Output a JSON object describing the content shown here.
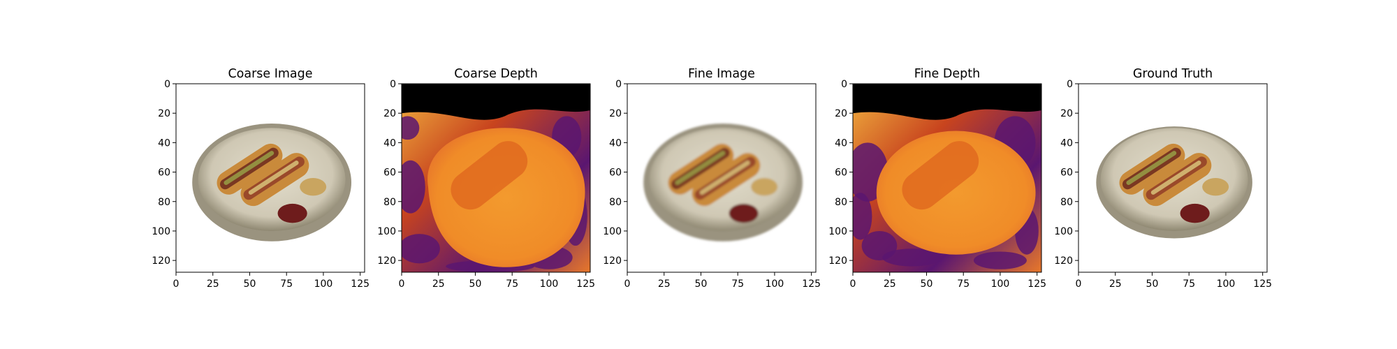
{
  "figure": {
    "panels": [
      {
        "title": "Coarse Image",
        "kind": "image"
      },
      {
        "title": "Coarse Depth",
        "kind": "depth"
      },
      {
        "title": "Fine Image",
        "kind": "image"
      },
      {
        "title": "Fine Depth",
        "kind": "depth"
      },
      {
        "title": "Ground Truth",
        "kind": "image"
      }
    ],
    "axis": {
      "x_ticks": [
        "0",
        "25",
        "50",
        "75",
        "100",
        "125"
      ],
      "y_ticks": [
        "0",
        "20",
        "40",
        "60",
        "80",
        "100",
        "120"
      ],
      "range": [
        0,
        128
      ]
    },
    "colors": {
      "depth_background": "#000000",
      "depth_near": "#f08c28",
      "depth_mid": "#e06a1e",
      "depth_noise": "#5a1670",
      "plate": "#d3cdbb",
      "plate_rim": "#9a937f",
      "bun": "#c98a3a",
      "sausage": "#7a3822",
      "ketchup": "#6e1d1a",
      "mustard": "#c9a560"
    }
  }
}
